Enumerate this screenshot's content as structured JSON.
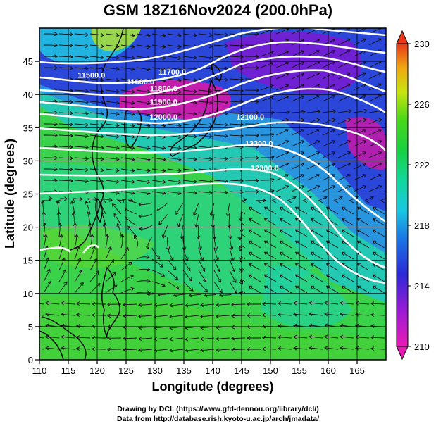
{
  "title": "GSM 18Z16Nov2024 (200.0hPa)",
  "x_axis": {
    "label": "Longitude (degrees)",
    "ticks": [
      110,
      115,
      120,
      125,
      130,
      135,
      140,
      145,
      150,
      155,
      160,
      165
    ],
    "range": [
      110,
      170
    ]
  },
  "y_axis": {
    "label": "Latitude  (degrees)",
    "ticks": [
      0,
      5,
      10,
      15,
      20,
      25,
      30,
      35,
      40,
      45
    ],
    "range": [
      0,
      50
    ]
  },
  "colorbar": {
    "ticks": [
      230,
      226,
      222,
      218,
      214,
      210
    ],
    "range": [
      210,
      230
    ]
  },
  "contour_labels": [
    {
      "text": "11500.0",
      "lon": 119,
      "lat": 42.5
    },
    {
      "text": "11600.0",
      "lon": 127.5,
      "lat": 41.5
    },
    {
      "text": "11700.0",
      "lon": 133,
      "lat": 43
    },
    {
      "text": "11800.0",
      "lon": 131.5,
      "lat": 40.5
    },
    {
      "text": "11900.0",
      "lon": 131.5,
      "lat": 38.5
    },
    {
      "text": "12000.0",
      "lon": 131.5,
      "lat": 36.2
    },
    {
      "text": "12100.0",
      "lon": 146.5,
      "lat": 36.2
    },
    {
      "text": "12200.0",
      "lon": 148,
      "lat": 32.2
    },
    {
      "text": "12300.0",
      "lon": 149,
      "lat": 28.5
    }
  ],
  "credits": {
    "line1": "Drawing by DCL (https://www.gfd-dennou.org/library/dcl/)",
    "line2": "Data from http://database.rish.kyoto-u.ac.jp/arch/jmadata/"
  }
}
